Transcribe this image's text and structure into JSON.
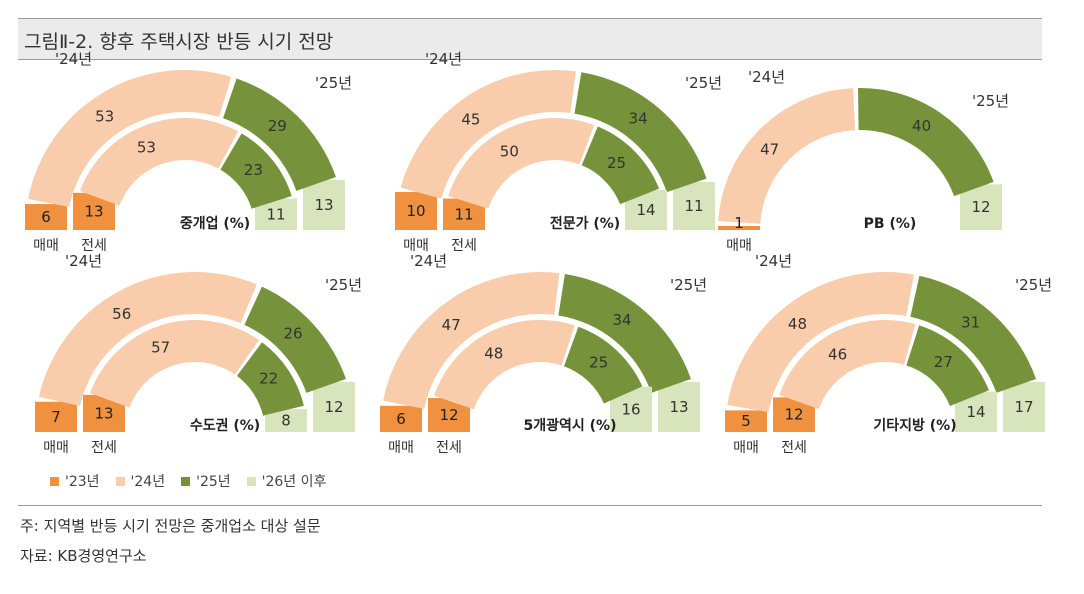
{
  "figure": {
    "title": "그림Ⅱ-2.  향후 주택시장 반등 시기  전망",
    "note": "주: 지역별 반등 시기 전망은 중개업소 대상 설문",
    "source": "자료: KB경영연구소"
  },
  "legend": [
    {
      "label": "'23년",
      "color": "#f0913f"
    },
    {
      "label": "'24년",
      "color": "#f9ccab"
    },
    {
      "label": "'25년",
      "color": "#76933c"
    },
    {
      "label": "'26년 이후",
      "color": "#d8e4bc"
    }
  ],
  "chart_data": [
    {
      "type": "half-donut",
      "title": "중개업 (%)",
      "year_labels": [
        "'24년",
        "'25년"
      ],
      "series": [
        {
          "name": "매매",
          "values": [
            6,
            53,
            29,
            13
          ]
        },
        {
          "name": "전세",
          "values": [
            13,
            53,
            23,
            11
          ]
        }
      ]
    },
    {
      "type": "half-donut",
      "title": "전문가 (%)",
      "year_labels": [
        "'24년",
        "'25년"
      ],
      "series": [
        {
          "name": "매매",
          "values": [
            10,
            45,
            34,
            11
          ]
        },
        {
          "name": "전세",
          "values": [
            11,
            50,
            25,
            14
          ]
        }
      ]
    },
    {
      "type": "half-donut",
      "title": "PB (%)",
      "year_labels": [
        "'24년",
        "'25년"
      ],
      "series": [
        {
          "name": "매매",
          "values": [
            1,
            47,
            40,
            12
          ]
        }
      ]
    },
    {
      "type": "half-donut",
      "title": "수도권 (%)",
      "year_labels": [
        "'24년",
        "'25년"
      ],
      "series": [
        {
          "name": "매매",
          "values": [
            7,
            56,
            26,
            12
          ]
        },
        {
          "name": "전세",
          "values": [
            13,
            57,
            22,
            8
          ]
        }
      ]
    },
    {
      "type": "half-donut",
      "title": "5개광역시 (%)",
      "year_labels": [
        "'24년",
        "'25년"
      ],
      "series": [
        {
          "name": "매매",
          "values": [
            6,
            47,
            34,
            13
          ]
        },
        {
          "name": "전세",
          "values": [
            12,
            48,
            25,
            16
          ]
        }
      ]
    },
    {
      "type": "half-donut",
      "title": "기타지방 (%)",
      "year_labels": [
        "'24년",
        "'25년"
      ],
      "series": [
        {
          "name": "매매",
          "values": [
            5,
            48,
            31,
            17
          ]
        },
        {
          "name": "전세",
          "values": [
            12,
            46,
            27,
            14
          ]
        }
      ]
    }
  ]
}
